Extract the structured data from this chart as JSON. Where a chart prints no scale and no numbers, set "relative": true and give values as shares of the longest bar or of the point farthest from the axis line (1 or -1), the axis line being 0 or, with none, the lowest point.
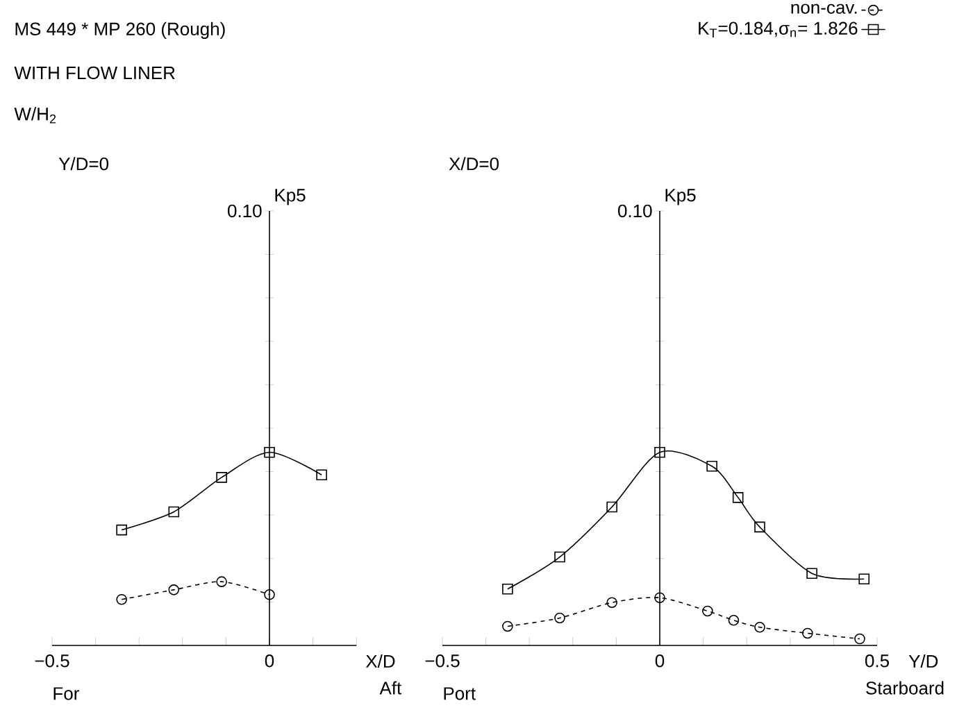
{
  "chart_data": [
    {
      "type": "line",
      "title": "Y/D=0",
      "xlabel": "X/D",
      "relative": true,
      "annotations": [
        "0.10",
        "For",
        "Aft",
        "Kp5",
        "MS 449 * MP 260 (Rough)",
        "WITH FLOW LINER",
        "W/H$_{2}$"
      ],
      "xlim": [
        -0.5,
        0.2
      ],
      "xticks": [
        {
          "value": -0.5,
          "label": "−0.5"
        },
        {
          "value": -0.4,
          "label": null
        },
        {
          "value": -0.3,
          "label": null
        },
        {
          "value": -0.2,
          "label": null
        },
        {
          "value": -0.1,
          "label": null
        },
        0,
        {
          "value": 0.1,
          "label": null
        },
        {
          "value": 0.2,
          "label": null
        }
      ],
      "series": [
        {
          "color": "#000000",
          "marker": "circle",
          "line_style": "dashed",
          "x": [
            -0.34,
            -0.22,
            -0.11,
            0
          ],
          "values": [
            0.238,
            0.288,
            0.33,
            0.263
          ]
        },
        {
          "color": "#000000",
          "marker": "square",
          "line_style": "solid",
          "x": [
            -0.34,
            -0.22,
            -0.11,
            0,
            0.12
          ],
          "values": [
            0.598,
            0.692,
            0.87,
            1,
            0.883
          ]
        }
      ]
    },
    {
      "type": "line",
      "title": "X/D=0",
      "xlabel": "Y/D",
      "legend": "top right",
      "relative": true,
      "annotations": [
        "0.10",
        "Port",
        "Starboard",
        "Kp5"
      ],
      "xlim": [
        -0.5,
        0.5
      ],
      "xticks": [
        {
          "value": -0.5,
          "label": "−0.5"
        },
        {
          "value": -0.4,
          "label": null
        },
        {
          "value": -0.3,
          "label": null
        },
        {
          "value": -0.2,
          "label": null
        },
        {
          "value": -0.1,
          "label": null
        },
        0,
        {
          "value": 0.1,
          "label": null
        },
        {
          "value": 0.2,
          "label": null
        },
        {
          "value": 0.3,
          "label": null
        },
        {
          "value": 0.4,
          "label": null
        },
        0.5
      ],
      "series": [
        {
          "name": "non-cav.",
          "color": "#000000",
          "marker": "circle",
          "line_style": "dashed",
          "x": [
            -0.35,
            -0.23,
            -0.11,
            0,
            0.11,
            0.17,
            0.23,
            0.34,
            0.46
          ],
          "values": [
            0.099,
            0.142,
            0.222,
            0.247,
            0.178,
            0.13,
            0.094,
            0.063,
            0.034
          ]
        },
        {
          "name": "K$_{T}$=0.184,σ$_{n}$= 1.826",
          "color": "#000000",
          "marker": "square",
          "line_style": "solid",
          "x": [
            -0.35,
            -0.23,
            -0.11,
            0,
            0.12,
            0.18,
            0.23,
            0.35,
            0.47
          ],
          "values": [
            0.292,
            0.458,
            0.717,
            1,
            0.928,
            0.766,
            0.613,
            0.373,
            0.344
          ]
        }
      ]
    }
  ]
}
